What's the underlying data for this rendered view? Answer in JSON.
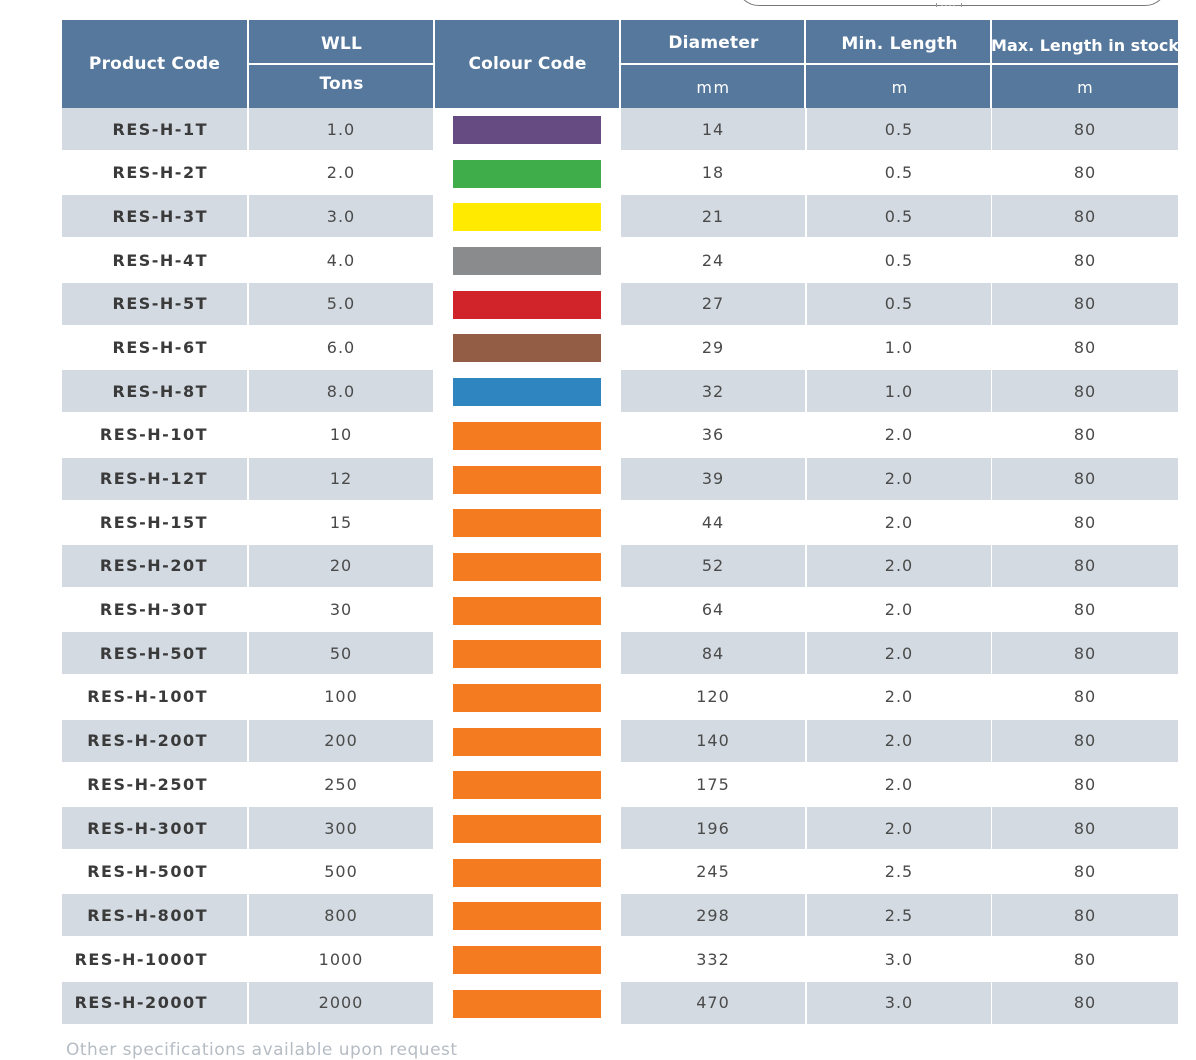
{
  "header": {
    "product_code": "Product Code",
    "wll": "WLL",
    "wll_unit": "Tons",
    "colour_code": "Colour Code",
    "diameter": "Diameter",
    "diameter_unit": "mm",
    "min_length": "Min. Length",
    "min_length_unit": "m",
    "max_length": "Max. Length in stock",
    "max_length_unit": "m"
  },
  "rows": [
    {
      "code": "RES-H-1T",
      "wll": "1.0",
      "color": "#664a82",
      "diameter": "14",
      "min": "0.5",
      "max": "80"
    },
    {
      "code": "RES-H-2T",
      "wll": "2.0",
      "color": "#3fae4a",
      "diameter": "18",
      "min": "0.5",
      "max": "80"
    },
    {
      "code": "RES-H-3T",
      "wll": "3.0",
      "color": "#ffea00",
      "diameter": "21",
      "min": "0.5",
      "max": "80"
    },
    {
      "code": "RES-H-4T",
      "wll": "4.0",
      "color": "#8a8b8d",
      "diameter": "24",
      "min": "0.5",
      "max": "80"
    },
    {
      "code": "RES-H-5T",
      "wll": "5.0",
      "color": "#d1232a",
      "diameter": "27",
      "min": "0.5",
      "max": "80"
    },
    {
      "code": "RES-H-6T",
      "wll": "6.0",
      "color": "#935d45",
      "diameter": "29",
      "min": "1.0",
      "max": "80"
    },
    {
      "code": "RES-H-8T",
      "wll": "8.0",
      "color": "#2f85c0",
      "diameter": "32",
      "min": "1.0",
      "max": "80"
    },
    {
      "code": "RES-H-10T",
      "wll": "10",
      "color": "#f47b20",
      "diameter": "36",
      "min": "2.0",
      "max": "80"
    },
    {
      "code": "RES-H-12T",
      "wll": "12",
      "color": "#f47b20",
      "diameter": "39",
      "min": "2.0",
      "max": "80"
    },
    {
      "code": "RES-H-15T",
      "wll": "15",
      "color": "#f47b20",
      "diameter": "44",
      "min": "2.0",
      "max": "80"
    },
    {
      "code": "RES-H-20T",
      "wll": "20",
      "color": "#f47b20",
      "diameter": "52",
      "min": "2.0",
      "max": "80"
    },
    {
      "code": "RES-H-30T",
      "wll": "30",
      "color": "#f47b20",
      "diameter": "64",
      "min": "2.0",
      "max": "80"
    },
    {
      "code": "RES-H-50T",
      "wll": "50",
      "color": "#f47b20",
      "diameter": "84",
      "min": "2.0",
      "max": "80"
    },
    {
      "code": "RES-H-100T",
      "wll": "100",
      "color": "#f47b20",
      "diameter": "120",
      "min": "2.0",
      "max": "80"
    },
    {
      "code": "RES-H-200T",
      "wll": "200",
      "color": "#f47b20",
      "diameter": "140",
      "min": "2.0",
      "max": "80"
    },
    {
      "code": "RES-H-250T",
      "wll": "250",
      "color": "#f47b20",
      "diameter": "175",
      "min": "2.0",
      "max": "80"
    },
    {
      "code": "RES-H-300T",
      "wll": "300",
      "color": "#f47b20",
      "diameter": "196",
      "min": "2.0",
      "max": "80"
    },
    {
      "code": "RES-H-500T",
      "wll": "500",
      "color": "#f47b20",
      "diameter": "245",
      "min": "2.5",
      "max": "80"
    },
    {
      "code": "RES-H-800T",
      "wll": "800",
      "color": "#f47b20",
      "diameter": "298",
      "min": "2.5",
      "max": "80"
    },
    {
      "code": "RES-H-1000T",
      "wll": "1000",
      "color": "#f47b20",
      "diameter": "332",
      "min": "3.0",
      "max": "80"
    },
    {
      "code": "RES-H-2000T",
      "wll": "2000",
      "color": "#f47b20",
      "diameter": "470",
      "min": "3.0",
      "max": "80"
    }
  ],
  "colors": {
    "header_bg": "#55789c",
    "stripe": "#d3dae1",
    "text": "#4a4a4a"
  },
  "footnote": "Other specifications available upon request"
}
